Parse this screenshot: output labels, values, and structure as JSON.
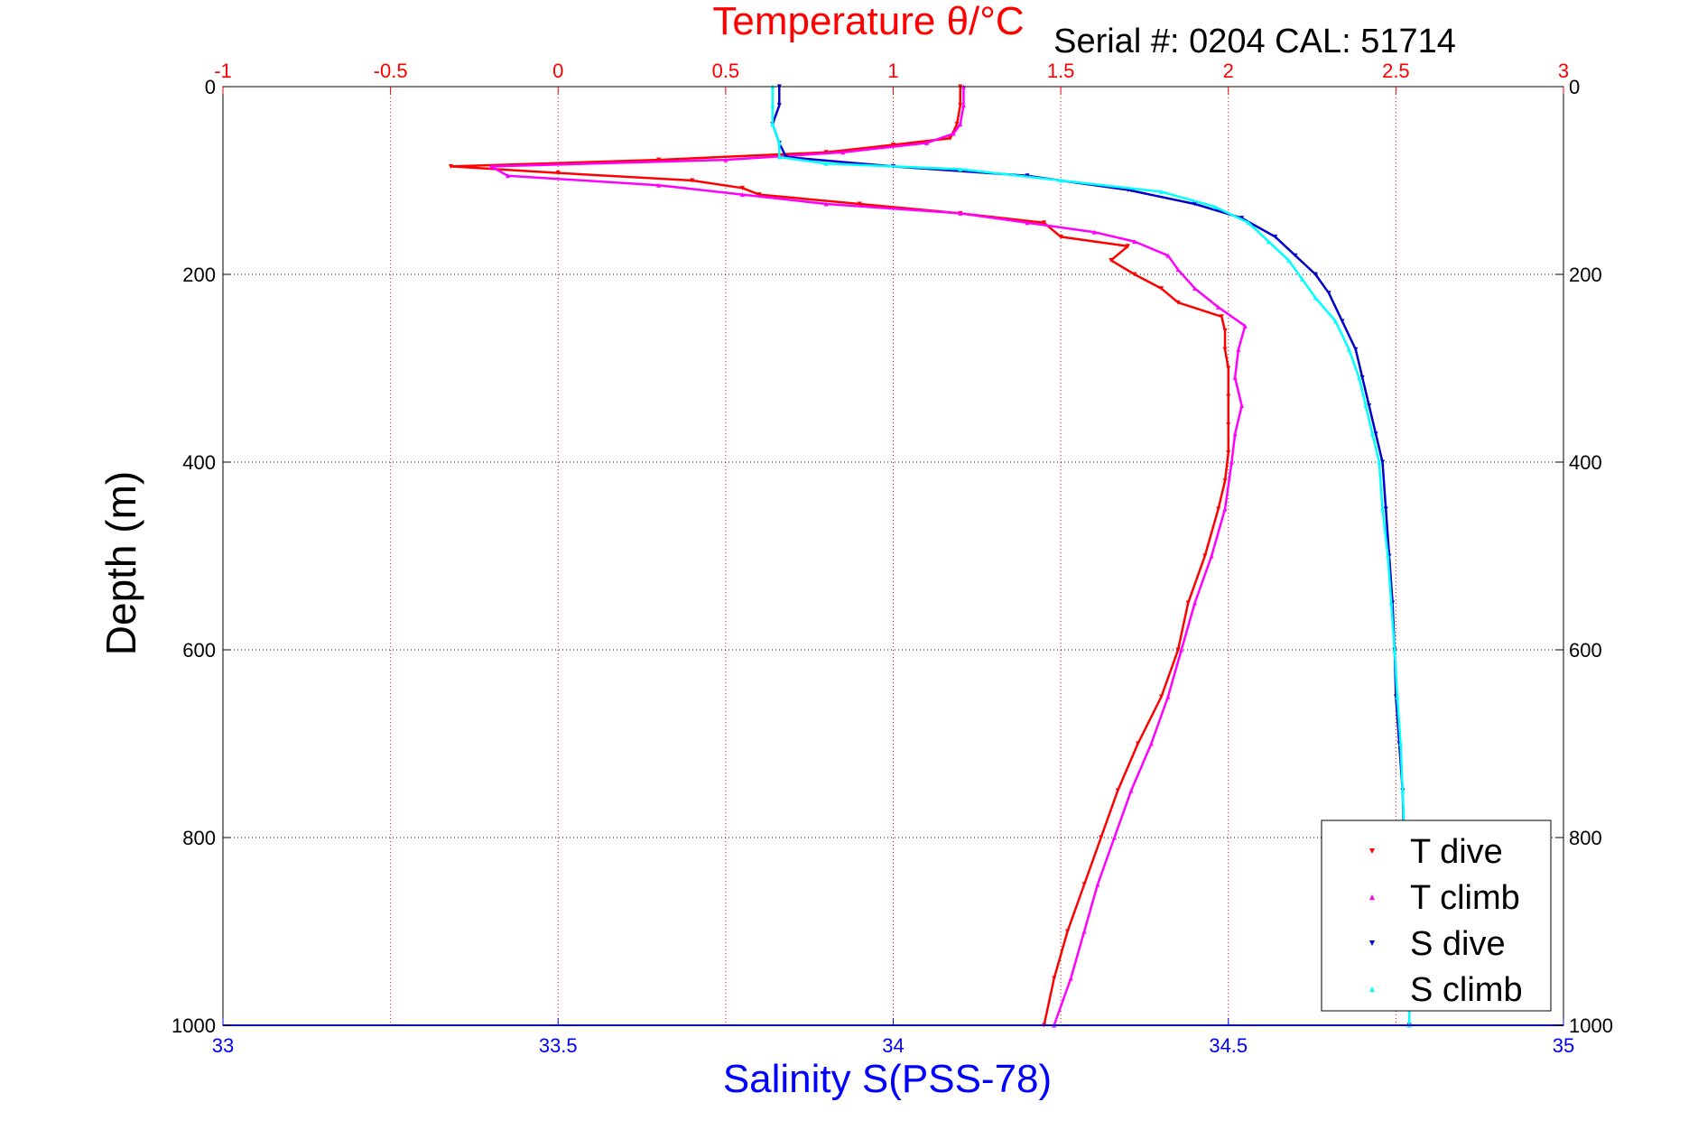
{
  "chart_data": {
    "type": "scatter",
    "title": "Temperature θ/°C",
    "subtitle": "Serial #: 0204   CAL: 51714",
    "ylabel": "Depth (m)",
    "xlabel_bottom": "Salinity S(PSS-78)",
    "xlabel_top": "Temperature θ/°C",
    "ylim": [
      0,
      1000
    ],
    "y_reversed": true,
    "y_ticks": [
      "0",
      "200",
      "400",
      "600",
      "800",
      "1000"
    ],
    "x_bottom_lim": [
      33,
      35
    ],
    "x_bottom_ticks": [
      "33",
      "33.5",
      "34",
      "34.5",
      "35"
    ],
    "x_top_lim": [
      -1,
      3
    ],
    "x_top_ticks": [
      "-1",
      "-0.5",
      "0",
      "0.5",
      "1",
      "1.5",
      "2",
      "2.5",
      "3"
    ],
    "grid": true,
    "legend_position": "bottom-right",
    "series": [
      {
        "name": "T dive",
        "axis": "top",
        "color": "#ff0000",
        "marker": "triangle-down",
        "points": [
          [
            1.2,
            0
          ],
          [
            1.2,
            20
          ],
          [
            1.19,
            40
          ],
          [
            1.17,
            55
          ],
          [
            1.0,
            62
          ],
          [
            0.8,
            70
          ],
          [
            0.3,
            78
          ],
          [
            -0.32,
            85
          ],
          [
            0.0,
            92
          ],
          [
            0.4,
            100
          ],
          [
            0.55,
            108
          ],
          [
            0.6,
            115
          ],
          [
            0.9,
            125
          ],
          [
            1.2,
            135
          ],
          [
            1.45,
            145
          ],
          [
            1.5,
            160
          ],
          [
            1.7,
            170
          ],
          [
            1.65,
            185
          ],
          [
            1.72,
            200
          ],
          [
            1.8,
            215
          ],
          [
            1.85,
            230
          ],
          [
            1.98,
            245
          ],
          [
            1.99,
            260
          ],
          [
            1.99,
            280
          ],
          [
            2.0,
            300
          ],
          [
            2.0,
            330
          ],
          [
            2.0,
            360
          ],
          [
            2.0,
            390
          ],
          [
            1.99,
            420
          ],
          [
            1.97,
            450
          ],
          [
            1.93,
            500
          ],
          [
            1.88,
            550
          ],
          [
            1.85,
            600
          ],
          [
            1.8,
            650
          ],
          [
            1.73,
            700
          ],
          [
            1.67,
            750
          ],
          [
            1.62,
            800
          ],
          [
            1.57,
            850
          ],
          [
            1.52,
            900
          ],
          [
            1.48,
            950
          ],
          [
            1.45,
            1000
          ]
        ]
      },
      {
        "name": "T climb",
        "axis": "top",
        "color": "#ff00ff",
        "marker": "triangle-up",
        "points": [
          [
            1.21,
            0
          ],
          [
            1.21,
            20
          ],
          [
            1.2,
            40
          ],
          [
            1.18,
            50
          ],
          [
            1.1,
            60
          ],
          [
            0.85,
            70
          ],
          [
            0.5,
            78
          ],
          [
            -0.2,
            85
          ],
          [
            -0.15,
            95
          ],
          [
            0.3,
            105
          ],
          [
            0.55,
            115
          ],
          [
            0.8,
            125
          ],
          [
            1.2,
            135
          ],
          [
            1.4,
            145
          ],
          [
            1.6,
            155
          ],
          [
            1.72,
            165
          ],
          [
            1.82,
            180
          ],
          [
            1.85,
            195
          ],
          [
            1.9,
            215
          ],
          [
            1.97,
            235
          ],
          [
            2.05,
            255
          ],
          [
            2.03,
            280
          ],
          [
            2.02,
            310
          ],
          [
            2.04,
            340
          ],
          [
            2.02,
            370
          ],
          [
            2.01,
            400
          ],
          [
            1.99,
            450
          ],
          [
            1.95,
            500
          ],
          [
            1.9,
            550
          ],
          [
            1.86,
            600
          ],
          [
            1.82,
            650
          ],
          [
            1.77,
            700
          ],
          [
            1.71,
            750
          ],
          [
            1.66,
            800
          ],
          [
            1.61,
            850
          ],
          [
            1.57,
            900
          ],
          [
            1.53,
            950
          ],
          [
            1.48,
            1000
          ]
        ]
      },
      {
        "name": "S dive",
        "axis": "bottom",
        "color": "#0000cc",
        "marker": "triangle-down",
        "points": [
          [
            33.83,
            0
          ],
          [
            33.83,
            20
          ],
          [
            33.82,
            40
          ],
          [
            33.83,
            60
          ],
          [
            33.84,
            75
          ],
          [
            34.0,
            85
          ],
          [
            34.2,
            95
          ],
          [
            34.35,
            110
          ],
          [
            34.45,
            125
          ],
          [
            34.52,
            140
          ],
          [
            34.57,
            160
          ],
          [
            34.6,
            180
          ],
          [
            34.63,
            200
          ],
          [
            34.65,
            220
          ],
          [
            34.67,
            250
          ],
          [
            34.69,
            280
          ],
          [
            34.7,
            310
          ],
          [
            34.71,
            340
          ],
          [
            34.72,
            370
          ],
          [
            34.73,
            400
          ],
          [
            34.735,
            450
          ],
          [
            34.74,
            500
          ],
          [
            34.745,
            550
          ],
          [
            34.748,
            600
          ],
          [
            34.75,
            650
          ],
          [
            34.755,
            700
          ],
          [
            34.76,
            750
          ],
          [
            34.762,
            800
          ],
          [
            34.765,
            850
          ],
          [
            34.767,
            900
          ],
          [
            34.77,
            950
          ],
          [
            34.77,
            1000
          ]
        ]
      },
      {
        "name": "S climb",
        "axis": "bottom",
        "color": "#00ffff",
        "marker": "triangle-up",
        "points": [
          [
            33.82,
            0
          ],
          [
            33.82,
            20
          ],
          [
            33.82,
            40
          ],
          [
            33.83,
            60
          ],
          [
            33.83,
            75
          ],
          [
            33.9,
            82
          ],
          [
            34.1,
            88
          ],
          [
            34.25,
            100
          ],
          [
            34.4,
            112
          ],
          [
            34.48,
            128
          ],
          [
            34.53,
            145
          ],
          [
            34.56,
            165
          ],
          [
            34.59,
            185
          ],
          [
            34.61,
            205
          ],
          [
            34.63,
            225
          ],
          [
            34.66,
            250
          ],
          [
            34.68,
            280
          ],
          [
            34.695,
            310
          ],
          [
            34.705,
            340
          ],
          [
            34.715,
            370
          ],
          [
            34.725,
            400
          ],
          [
            34.73,
            450
          ],
          [
            34.738,
            500
          ],
          [
            34.743,
            550
          ],
          [
            34.748,
            600
          ],
          [
            34.752,
            650
          ],
          [
            34.757,
            700
          ],
          [
            34.76,
            750
          ],
          [
            34.763,
            800
          ],
          [
            34.765,
            850
          ],
          [
            34.767,
            900
          ],
          [
            34.77,
            950
          ],
          [
            34.77,
            1000
          ]
        ]
      }
    ]
  }
}
